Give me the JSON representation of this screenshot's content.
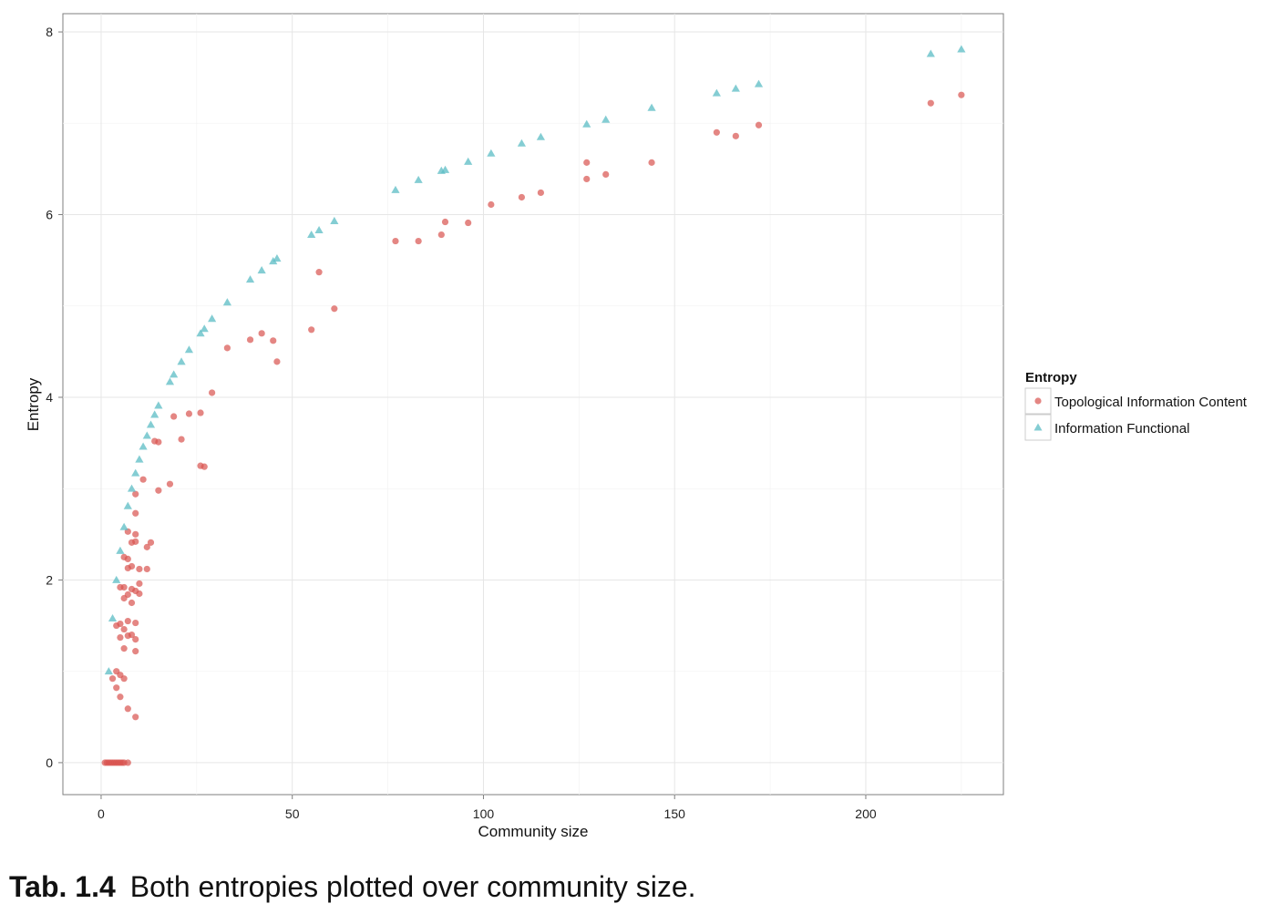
{
  "chart_data": {
    "type": "scatter",
    "xlabel": "Community size",
    "ylabel": "Entropy",
    "xlim": [
      -10,
      236
    ],
    "ylim": [
      -0.35,
      8.2
    ],
    "x_ticks": [
      0,
      50,
      100,
      150,
      200
    ],
    "y_ticks": [
      0,
      2,
      4,
      6,
      8
    ],
    "x_tick_labels": [
      "0",
      "50",
      "100",
      "150",
      "200"
    ],
    "y_tick_labels": [
      "0",
      "2",
      "4",
      "6",
      "8"
    ],
    "grid": true,
    "legend": {
      "title": "Entropy",
      "position": "right",
      "entries": [
        "Topological Information Content",
        "Information Functional"
      ]
    },
    "series": [
      {
        "name": "Topological Information Content",
        "marker": "circle",
        "color": "#d9534f",
        "points": [
          [
            1,
            0
          ],
          [
            1.5,
            0
          ],
          [
            2,
            0
          ],
          [
            2.5,
            0
          ],
          [
            3,
            0
          ],
          [
            3.5,
            0
          ],
          [
            4,
            0
          ],
          [
            4.5,
            0
          ],
          [
            5,
            0
          ],
          [
            5.5,
            0
          ],
          [
            6,
            0
          ],
          [
            7,
            0
          ],
          [
            3,
            0.92
          ],
          [
            4,
            0.82
          ],
          [
            4,
            1.0
          ],
          [
            5,
            0.96
          ],
          [
            5,
            0.72
          ],
          [
            6,
            0.92
          ],
          [
            7,
            0.59
          ],
          [
            9,
            0.5
          ],
          [
            4,
            1.5
          ],
          [
            5,
            1.52
          ],
          [
            5,
            1.37
          ],
          [
            6,
            1.46
          ],
          [
            6,
            1.25
          ],
          [
            7,
            1.39
          ],
          [
            7,
            1.55
          ],
          [
            8,
            1.4
          ],
          [
            9,
            1.53
          ],
          [
            9,
            1.35
          ],
          [
            9,
            1.22
          ],
          [
            5,
            1.92
          ],
          [
            6,
            1.92
          ],
          [
            6,
            1.8
          ],
          [
            7,
            1.84
          ],
          [
            8,
            1.9
          ],
          [
            8,
            1.75
          ],
          [
            9,
            1.88
          ],
          [
            10,
            1.85
          ],
          [
            10,
            1.96
          ],
          [
            6,
            2.25
          ],
          [
            7,
            2.23
          ],
          [
            7,
            2.13
          ],
          [
            8,
            2.41
          ],
          [
            8,
            2.15
          ],
          [
            9,
            2.42
          ],
          [
            10,
            2.12
          ],
          [
            12,
            2.12
          ],
          [
            12,
            2.36
          ],
          [
            13,
            2.41
          ],
          [
            7,
            2.53
          ],
          [
            9,
            2.5
          ],
          [
            9,
            2.73
          ],
          [
            9,
            2.94
          ],
          [
            11,
            3.1
          ],
          [
            14,
            3.52
          ],
          [
            15,
            3.51
          ],
          [
            15,
            2.98
          ],
          [
            18,
            3.05
          ],
          [
            19,
            3.79
          ],
          [
            21,
            3.54
          ],
          [
            23,
            3.82
          ],
          [
            26,
            3.83
          ],
          [
            26,
            3.25
          ],
          [
            27,
            3.24
          ],
          [
            29,
            4.05
          ],
          [
            33,
            4.54
          ],
          [
            39,
            4.63
          ],
          [
            42,
            4.7
          ],
          [
            45,
            4.62
          ],
          [
            46,
            4.39
          ],
          [
            55,
            4.74
          ],
          [
            57,
            5.37
          ],
          [
            61,
            4.97
          ],
          [
            77,
            5.71
          ],
          [
            83,
            5.71
          ],
          [
            89,
            5.78
          ],
          [
            90,
            5.92
          ],
          [
            96,
            5.91
          ],
          [
            102,
            6.11
          ],
          [
            110,
            6.19
          ],
          [
            115,
            6.24
          ],
          [
            127,
            6.39
          ],
          [
            127,
            6.57
          ],
          [
            132,
            6.44
          ],
          [
            144,
            6.57
          ],
          [
            161,
            6.9
          ],
          [
            166,
            6.86
          ],
          [
            172,
            6.98
          ],
          [
            217,
            7.22
          ],
          [
            225,
            7.31
          ]
        ]
      },
      {
        "name": "Information Functional",
        "marker": "triangle",
        "color": "#5bbcc4",
        "points": [
          [
            2,
            1.0
          ],
          [
            3,
            1.58
          ],
          [
            4,
            2.0
          ],
          [
            5,
            2.32
          ],
          [
            6,
            2.58
          ],
          [
            7,
            2.81
          ],
          [
            8,
            3.0
          ],
          [
            9,
            3.17
          ],
          [
            10,
            3.32
          ],
          [
            11,
            3.46
          ],
          [
            12,
            3.58
          ],
          [
            13,
            3.7
          ],
          [
            14,
            3.81
          ],
          [
            15,
            3.91
          ],
          [
            18,
            4.17
          ],
          [
            19,
            4.25
          ],
          [
            21,
            4.39
          ],
          [
            23,
            4.52
          ],
          [
            26,
            4.7
          ],
          [
            27,
            4.75
          ],
          [
            29,
            4.86
          ],
          [
            33,
            5.04
          ],
          [
            39,
            5.29
          ],
          [
            42,
            5.39
          ],
          [
            45,
            5.49
          ],
          [
            46,
            5.52
          ],
          [
            55,
            5.78
          ],
          [
            57,
            5.83
          ],
          [
            61,
            5.93
          ],
          [
            77,
            6.27
          ],
          [
            83,
            6.38
          ],
          [
            89,
            6.48
          ],
          [
            90,
            6.49
          ],
          [
            96,
            6.58
          ],
          [
            102,
            6.67
          ],
          [
            110,
            6.78
          ],
          [
            115,
            6.85
          ],
          [
            127,
            6.99
          ],
          [
            132,
            7.04
          ],
          [
            144,
            7.17
          ],
          [
            161,
            7.33
          ],
          [
            166,
            7.38
          ],
          [
            172,
            7.43
          ],
          [
            217,
            7.76
          ],
          [
            225,
            7.81
          ]
        ]
      }
    ]
  },
  "caption": {
    "label": "Tab. 1.4",
    "text": "Both entropies plotted over community size."
  }
}
